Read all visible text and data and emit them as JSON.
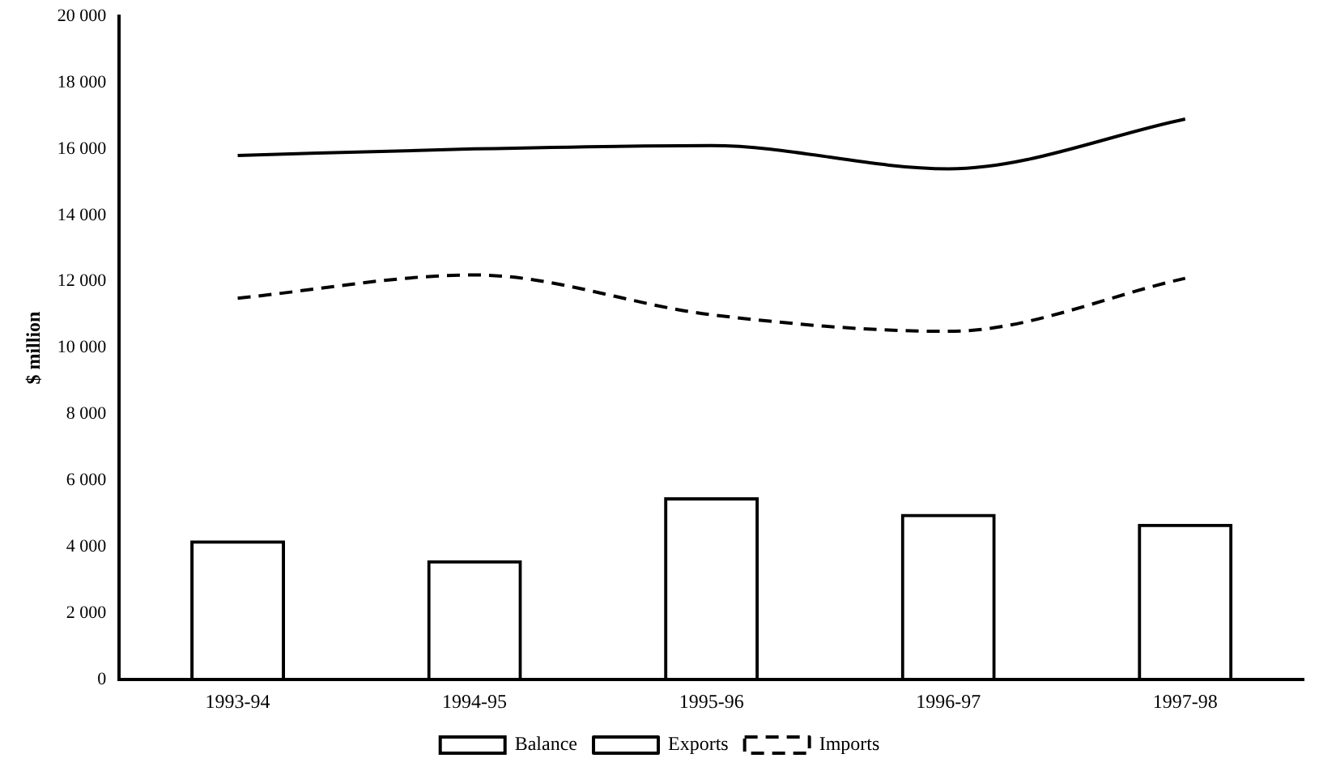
{
  "chart_data": {
    "type": "bar",
    "ylabel": "$ million",
    "categories": [
      "1993-94",
      "1994-95",
      "1995-96",
      "1996-97",
      "1997-98"
    ],
    "series": [
      {
        "name": "Balance",
        "type": "bar",
        "color": "#000000",
        "values": [
          4200,
          3600,
          5500,
          5000,
          4700
        ]
      },
      {
        "name": "Exports",
        "type": "line",
        "color": "#000000",
        "line_style": "solid",
        "values": [
          15800,
          16000,
          16100,
          15400,
          16900
        ]
      },
      {
        "name": "Imports",
        "type": "line",
        "color": "#000000",
        "line_style": "dashed",
        "values": [
          11500,
          12200,
          11000,
          10500,
          12100
        ]
      }
    ],
    "ylim": [
      0,
      20000
    ],
    "yticks": [
      0,
      {
        "value": 2000,
        "label": "2 000"
      },
      {
        "value": 4000,
        "label": "4 000"
      },
      {
        "value": 6000,
        "label": "6 000"
      },
      {
        "value": 8000,
        "label": "8 000"
      },
      {
        "value": 10000,
        "label": "10 000"
      },
      {
        "value": 12000,
        "label": "12 000"
      },
      {
        "value": 14000,
        "label": "14 000"
      },
      {
        "value": 16000,
        "label": "16 000"
      },
      {
        "value": 18000,
        "label": "18 000"
      },
      {
        "value": 20000,
        "label": "20 000"
      }
    ],
    "grid": false,
    "legend": "bottom",
    "marker": "none"
  }
}
